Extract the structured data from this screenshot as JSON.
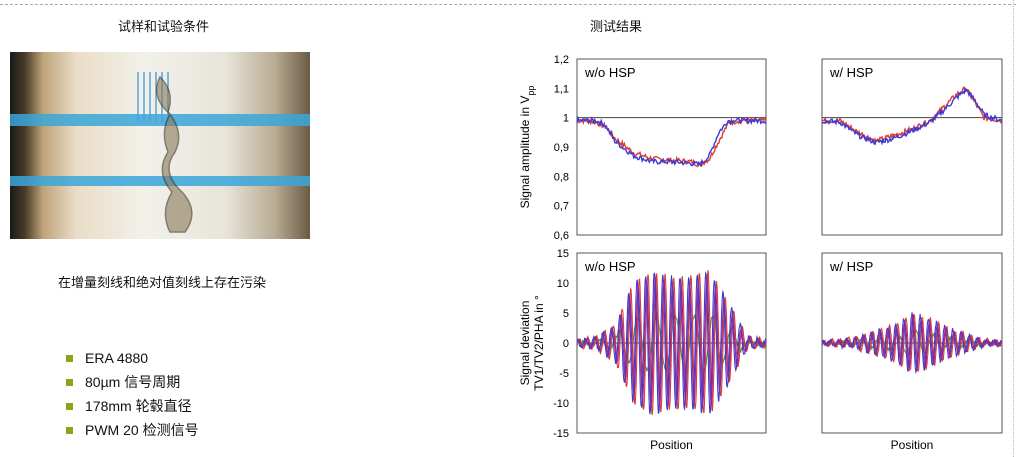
{
  "headings": {
    "left": "试样和试验条件",
    "right": "测试结果"
  },
  "caption": "在增量刻线和绝对值刻线上存在污染",
  "bullets": [
    "ERA 4880",
    "80µm  信号周期",
    "178mm 轮毂直径",
    "PWM 20 检测信号"
  ],
  "colors": {
    "bullet": "#8ea21a",
    "red": "#e03a2c",
    "blue": "#3a3ad8",
    "purple": "#8a2a9a",
    "green": "#3a9a3a"
  },
  "chart_data": [
    {
      "type": "line",
      "panel_title": "w/o HSP",
      "ylabel": "Signal amplitude in V",
      "ylabel_sub": "pp",
      "ylim": [
        0.6,
        1.2
      ],
      "yticks": [
        "0,6",
        "0,7",
        "0,8",
        "0,9",
        "1",
        "1,1",
        "1,2"
      ],
      "series": [
        {
          "color": "red",
          "x": [
            0,
            0.05,
            0.1,
            0.15,
            0.2,
            0.3,
            0.4,
            0.5,
            0.6,
            0.65,
            0.7,
            0.75,
            0.8,
            0.85,
            0.9,
            1
          ],
          "y": [
            0.99,
            0.99,
            0.985,
            0.97,
            0.93,
            0.88,
            0.86,
            0.855,
            0.85,
            0.84,
            0.86,
            0.92,
            0.98,
            0.99,
            0.99,
            0.99
          ]
        },
        {
          "color": "blue",
          "x": [
            0,
            0.05,
            0.1,
            0.15,
            0.2,
            0.3,
            0.4,
            0.5,
            0.6,
            0.65,
            0.7,
            0.75,
            0.8,
            0.85,
            0.9,
            1
          ],
          "y": [
            0.99,
            0.99,
            0.99,
            0.975,
            0.92,
            0.87,
            0.85,
            0.85,
            0.845,
            0.84,
            0.87,
            0.95,
            0.99,
            0.99,
            0.99,
            0.99
          ]
        }
      ]
    },
    {
      "type": "line",
      "panel_title": "w/  HSP",
      "ylim": [
        0.6,
        1.2
      ],
      "series": [
        {
          "color": "red",
          "x": [
            0,
            0.1,
            0.2,
            0.3,
            0.4,
            0.5,
            0.6,
            0.65,
            0.7,
            0.75,
            0.8,
            0.85,
            0.9,
            1
          ],
          "y": [
            0.99,
            0.99,
            0.95,
            0.92,
            0.94,
            0.96,
            0.99,
            1.02,
            1.05,
            1.08,
            1.1,
            1.05,
            1.0,
            0.99
          ]
        },
        {
          "color": "blue",
          "x": [
            0,
            0.1,
            0.2,
            0.3,
            0.4,
            0.5,
            0.6,
            0.65,
            0.7,
            0.75,
            0.8,
            0.85,
            0.9,
            1
          ],
          "y": [
            0.99,
            0.985,
            0.94,
            0.915,
            0.93,
            0.955,
            0.985,
            1.01,
            1.04,
            1.07,
            1.095,
            1.06,
            1.01,
            0.99
          ]
        }
      ]
    },
    {
      "type": "line",
      "panel_title": "w/o HSP",
      "ylabel": "Signal deviation",
      "ylabel2": "TV1/TV2/PHA in °",
      "xlabel": "Position",
      "ylim": [
        -15,
        15
      ],
      "yticks": [
        "-15",
        "-10",
        "-5",
        "0",
        "5",
        "10",
        "15"
      ],
      "envelope": {
        "x": [
          0,
          0.1,
          0.2,
          0.3,
          0.4,
          0.5,
          0.6,
          0.7,
          0.8,
          0.9,
          1
        ],
        "amp": [
          0.5,
          1,
          3,
          10,
          12,
          11,
          11,
          12,
          7,
          1,
          0.5
        ]
      }
    },
    {
      "type": "line",
      "panel_title": "w/  HSP",
      "ylim": [
        -15,
        15
      ],
      "xlabel": "Position",
      "envelope": {
        "x": [
          0,
          0.1,
          0.2,
          0.3,
          0.4,
          0.5,
          0.6,
          0.7,
          0.8,
          0.9,
          1
        ],
        "amp": [
          0.3,
          0.5,
          1,
          2,
          3,
          5,
          4,
          2.5,
          1.5,
          0.5,
          0.3
        ]
      }
    }
  ]
}
